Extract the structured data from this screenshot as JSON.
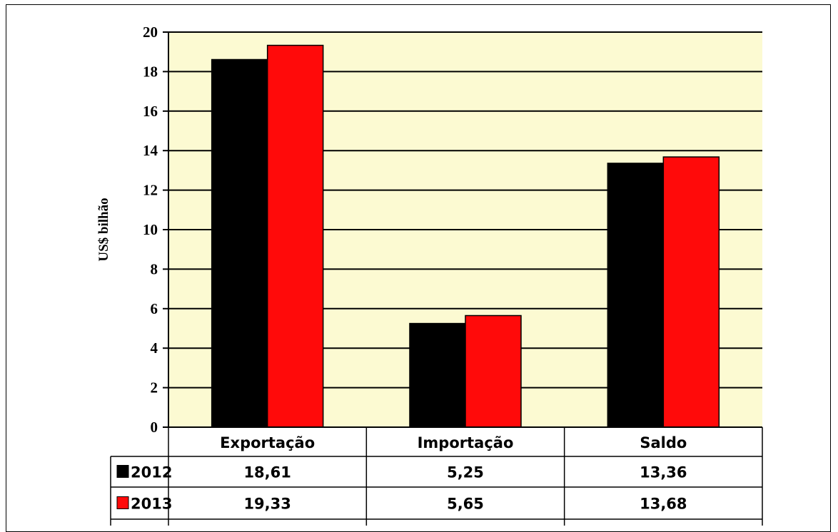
{
  "chart_data": {
    "type": "bar",
    "categories": [
      "Exportação",
      "Importação",
      "Saldo"
    ],
    "series": [
      {
        "name": "2012",
        "values": [
          18.61,
          5.25,
          13.36
        ],
        "labels": [
          "18,61",
          "5,25",
          "13,36"
        ],
        "color": "#000000"
      },
      {
        "name": "2013",
        "values": [
          19.33,
          5.65,
          13.68
        ],
        "labels": [
          "19,33",
          "5,65",
          "13,68"
        ],
        "color": "#ff0a0a"
      }
    ],
    "ylabel": "US$ bilhão",
    "ylim": [
      0,
      20
    ],
    "yticks": [
      0,
      2,
      4,
      6,
      8,
      10,
      12,
      14,
      16,
      18,
      20
    ],
    "grid": true,
    "plot_background": "#fcfad2",
    "data_table": true
  }
}
